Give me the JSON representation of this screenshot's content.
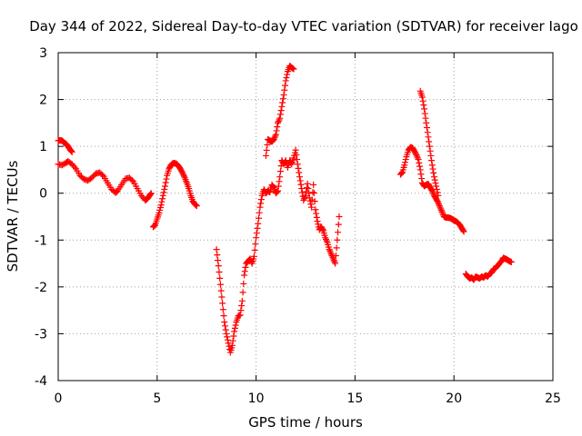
{
  "chart_data": {
    "type": "scatter",
    "title": "Day 344 of 2022, Sidereal Day-to-day VTEC variation (SDTVAR) for receiver Iago",
    "xlabel": "GPS time / hours",
    "ylabel": "SDTVAR / TECUs",
    "xlim": [
      0,
      25
    ],
    "ylim": [
      -4,
      3
    ],
    "xticks": [
      "0",
      "5",
      "10",
      "15",
      "20",
      "25"
    ],
    "yticks": [
      "-4",
      "-3",
      "-2",
      "-1",
      "0",
      "1",
      "2",
      "3"
    ],
    "grid": true,
    "marker": "plus",
    "color": "#ff0000",
    "series": [
      {
        "name": "seg1_upper",
        "points": [
          [
            0.0,
            1.12
          ],
          [
            0.1,
            1.13
          ],
          [
            0.2,
            1.12
          ],
          [
            0.3,
            1.08
          ],
          [
            0.4,
            1.05
          ],
          [
            0.5,
            1.0
          ],
          [
            0.6,
            0.93
          ],
          [
            0.7,
            0.88
          ]
        ]
      },
      {
        "name": "seg1_lower",
        "points": [
          [
            0.0,
            0.62
          ],
          [
            0.2,
            0.6
          ],
          [
            0.4,
            0.65
          ],
          [
            0.5,
            0.68
          ],
          [
            0.7,
            0.62
          ],
          [
            0.9,
            0.52
          ],
          [
            1.1,
            0.38
          ],
          [
            1.3,
            0.3
          ],
          [
            1.5,
            0.27
          ],
          [
            1.7,
            0.33
          ],
          [
            1.9,
            0.42
          ],
          [
            2.1,
            0.44
          ],
          [
            2.3,
            0.36
          ],
          [
            2.5,
            0.22
          ],
          [
            2.7,
            0.08
          ],
          [
            2.9,
            0.01
          ],
          [
            3.0,
            0.05
          ],
          [
            3.2,
            0.18
          ],
          [
            3.4,
            0.31
          ],
          [
            3.6,
            0.33
          ],
          [
            3.8,
            0.25
          ],
          [
            4.0,
            0.1
          ],
          [
            4.2,
            -0.05
          ],
          [
            4.4,
            -0.15
          ],
          [
            4.5,
            -0.12
          ],
          [
            4.6,
            -0.06
          ],
          [
            4.7,
            0.0
          ]
        ]
      },
      {
        "name": "seg2",
        "points": [
          [
            4.8,
            -0.72
          ],
          [
            4.9,
            -0.68
          ],
          [
            5.0,
            -0.55
          ],
          [
            5.1,
            -0.42
          ],
          [
            5.2,
            -0.25
          ],
          [
            5.3,
            -0.05
          ],
          [
            5.4,
            0.15
          ],
          [
            5.5,
            0.38
          ],
          [
            5.6,
            0.52
          ],
          [
            5.7,
            0.6
          ],
          [
            5.8,
            0.64
          ],
          [
            5.9,
            0.64
          ],
          [
            6.0,
            0.62
          ],
          [
            6.1,
            0.57
          ],
          [
            6.2,
            0.5
          ],
          [
            6.3,
            0.42
          ],
          [
            6.4,
            0.33
          ],
          [
            6.5,
            0.22
          ],
          [
            6.6,
            0.1
          ],
          [
            6.7,
            -0.05
          ],
          [
            6.8,
            -0.17
          ],
          [
            6.9,
            -0.23
          ],
          [
            7.0,
            -0.27
          ]
        ]
      },
      {
        "name": "seg3",
        "points": [
          [
            8.0,
            -1.2
          ],
          [
            8.1,
            -1.55
          ],
          [
            8.2,
            -1.95
          ],
          [
            8.3,
            -2.35
          ],
          [
            8.4,
            -2.75
          ],
          [
            8.5,
            -3.0
          ],
          [
            8.6,
            -3.2
          ],
          [
            8.7,
            -3.4
          ],
          [
            8.8,
            -3.25
          ],
          [
            8.9,
            -2.95
          ],
          [
            9.0,
            -2.75
          ],
          [
            9.1,
            -2.62
          ],
          [
            9.2,
            -2.6
          ],
          [
            9.3,
            -2.3
          ],
          [
            9.4,
            -1.75
          ],
          [
            9.5,
            -1.5
          ],
          [
            9.6,
            -1.45
          ],
          [
            9.7,
            -1.4
          ],
          [
            9.8,
            -1.5
          ],
          [
            9.9,
            -1.35
          ],
          [
            10.0,
            -0.95
          ],
          [
            10.1,
            -0.65
          ],
          [
            10.2,
            -0.3
          ],
          [
            10.3,
            -0.05
          ],
          [
            10.4,
            0.08
          ],
          [
            10.5,
            0.0
          ],
          [
            10.6,
            0.05
          ],
          [
            10.7,
            0.02
          ],
          [
            10.8,
            0.18
          ],
          [
            10.9,
            0.12
          ],
          [
            11.0,
            0.0
          ],
          [
            11.1,
            0.05
          ],
          [
            11.2,
            0.35
          ],
          [
            11.3,
            0.7
          ],
          [
            11.4,
            0.62
          ],
          [
            11.5,
            0.7
          ],
          [
            11.6,
            0.55
          ],
          [
            11.7,
            0.7
          ],
          [
            11.8,
            0.62
          ],
          [
            11.9,
            0.75
          ],
          [
            12.0,
            0.92
          ],
          [
            12.1,
            0.62
          ],
          [
            12.2,
            0.35
          ],
          [
            12.3,
            0.1
          ],
          [
            12.4,
            -0.15
          ],
          [
            12.5,
            -0.05
          ],
          [
            12.6,
            0.2
          ],
          [
            12.7,
            -0.1
          ],
          [
            12.8,
            -0.3
          ],
          [
            12.9,
            0.18
          ],
          [
            13.0,
            -0.35
          ],
          [
            13.1,
            -0.6
          ],
          [
            13.2,
            -0.78
          ],
          [
            13.3,
            -0.72
          ],
          [
            13.4,
            -0.8
          ],
          [
            13.5,
            -0.95
          ],
          [
            13.6,
            -1.05
          ],
          [
            13.7,
            -1.2
          ],
          [
            13.8,
            -1.3
          ],
          [
            13.9,
            -1.4
          ],
          [
            14.0,
            -1.5
          ],
          [
            14.1,
            -1.0
          ],
          [
            14.2,
            -0.5
          ]
        ]
      },
      {
        "name": "seg3_upper",
        "points": [
          [
            10.5,
            0.8
          ],
          [
            10.6,
            1.15
          ],
          [
            10.7,
            1.12
          ],
          [
            10.8,
            1.1
          ],
          [
            10.9,
            1.15
          ],
          [
            11.0,
            1.25
          ],
          [
            11.1,
            1.5
          ],
          [
            11.2,
            1.6
          ],
          [
            11.3,
            1.85
          ],
          [
            11.4,
            2.1
          ],
          [
            11.5,
            2.4
          ],
          [
            11.6,
            2.6
          ],
          [
            11.7,
            2.72
          ],
          [
            11.8,
            2.68
          ],
          [
            11.9,
            2.65
          ]
        ]
      },
      {
        "name": "seg4",
        "points": [
          [
            17.3,
            0.4
          ],
          [
            17.4,
            0.45
          ],
          [
            17.5,
            0.6
          ],
          [
            17.6,
            0.78
          ],
          [
            17.7,
            0.92
          ],
          [
            17.8,
            0.98
          ],
          [
            17.9,
            0.97
          ],
          [
            18.0,
            0.9
          ],
          [
            18.1,
            0.82
          ],
          [
            18.2,
            0.72
          ],
          [
            18.3,
            0.5
          ],
          [
            18.4,
            0.22
          ],
          [
            18.5,
            0.15
          ],
          [
            18.6,
            0.18
          ],
          [
            18.7,
            0.2
          ],
          [
            18.8,
            0.12
          ],
          [
            18.9,
            0.05
          ],
          [
            19.0,
            -0.05
          ],
          [
            19.1,
            -0.12
          ],
          [
            19.2,
            -0.2
          ],
          [
            19.3,
            -0.3
          ],
          [
            19.4,
            -0.4
          ],
          [
            19.5,
            -0.5
          ],
          [
            19.6,
            -0.52
          ],
          [
            19.7,
            -0.52
          ],
          [
            19.8,
            -0.53
          ],
          [
            19.9,
            -0.55
          ],
          [
            20.0,
            -0.58
          ],
          [
            20.1,
            -0.6
          ],
          [
            20.2,
            -0.63
          ],
          [
            20.3,
            -0.68
          ],
          [
            20.4,
            -0.75
          ],
          [
            20.5,
            -0.82
          ]
        ]
      },
      {
        "name": "seg4_upper",
        "points": [
          [
            18.3,
            2.18
          ],
          [
            18.4,
            2.05
          ],
          [
            18.5,
            1.8
          ],
          [
            18.6,
            1.5
          ],
          [
            18.7,
            1.2
          ],
          [
            18.8,
            0.9
          ],
          [
            18.9,
            0.6
          ],
          [
            19.0,
            0.35
          ],
          [
            19.1,
            0.15
          ],
          [
            19.2,
            -0.05
          ]
        ]
      },
      {
        "name": "seg5",
        "points": [
          [
            20.6,
            -1.72
          ],
          [
            20.7,
            -1.78
          ],
          [
            20.8,
            -1.82
          ],
          [
            20.9,
            -1.8
          ],
          [
            21.0,
            -1.85
          ],
          [
            21.1,
            -1.78
          ],
          [
            21.2,
            -1.8
          ],
          [
            21.3,
            -1.82
          ],
          [
            21.4,
            -1.78
          ],
          [
            21.5,
            -1.8
          ],
          [
            21.6,
            -1.75
          ],
          [
            21.7,
            -1.78
          ],
          [
            21.8,
            -1.72
          ],
          [
            21.9,
            -1.7
          ],
          [
            22.0,
            -1.62
          ],
          [
            22.1,
            -1.6
          ],
          [
            22.2,
            -1.55
          ],
          [
            22.3,
            -1.5
          ],
          [
            22.4,
            -1.45
          ],
          [
            22.5,
            -1.38
          ],
          [
            22.6,
            -1.4
          ],
          [
            22.7,
            -1.42
          ],
          [
            22.8,
            -1.45
          ],
          [
            22.9,
            -1.47
          ]
        ]
      }
    ]
  }
}
